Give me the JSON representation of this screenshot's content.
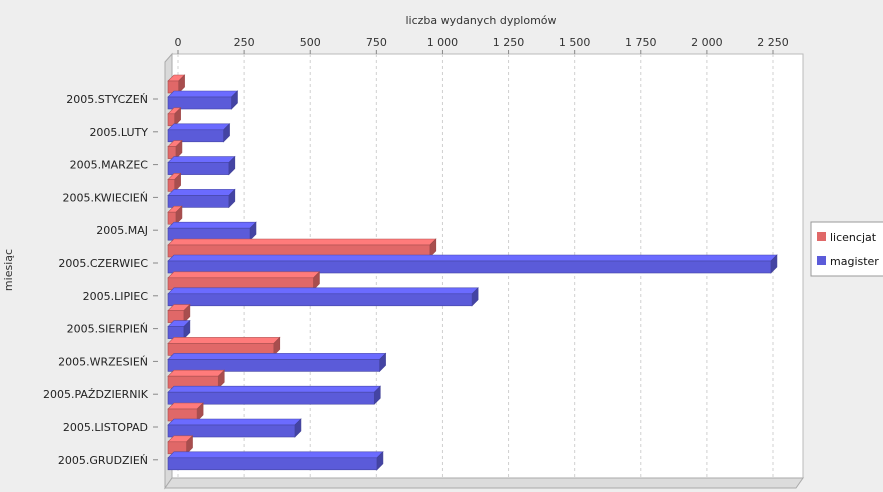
{
  "chart_data": {
    "type": "bar",
    "orientation": "horizontal",
    "title": "",
    "xlabel": "liczba wydanych dyplomów",
    "ylabel": "miesiąc",
    "xlim": [
      0,
      2250
    ],
    "x_ticks": [
      0,
      250,
      500,
      750,
      1000,
      1250,
      1500,
      1750,
      2000,
      2250
    ],
    "x_tick_labels": [
      "0",
      "250",
      "500",
      "750",
      "1 000",
      "1 250",
      "1 500",
      "1 750",
      "2 000",
      "2 250"
    ],
    "x_axis_position": "top",
    "grid": true,
    "legend_position": "right",
    "categories": [
      "2005.STYCZEŃ",
      "2005.LUTY",
      "2005.MARZEC",
      "2005.KWIECIEŃ",
      "2005.MAJ",
      "2005.CZERWIEC",
      "2005.LIPIEC",
      "2005.SIERPIEŃ",
      "2005.WRZESIEŃ",
      "2005.PAŹDZIERNIK",
      "2005.LISTOPAD",
      "2005.GRUDZIEŃ"
    ],
    "series": [
      {
        "name": "licencjat",
        "color": "#e06868",
        "values": [
          40,
          25,
          30,
          25,
          30,
          990,
          550,
          60,
          400,
          190,
          110,
          70
        ]
      },
      {
        "name": "magister",
        "color": "#5b5bd9",
        "values": [
          240,
          210,
          230,
          230,
          310,
          2280,
          1150,
          60,
          800,
          780,
          480,
          790
        ]
      }
    ]
  }
}
